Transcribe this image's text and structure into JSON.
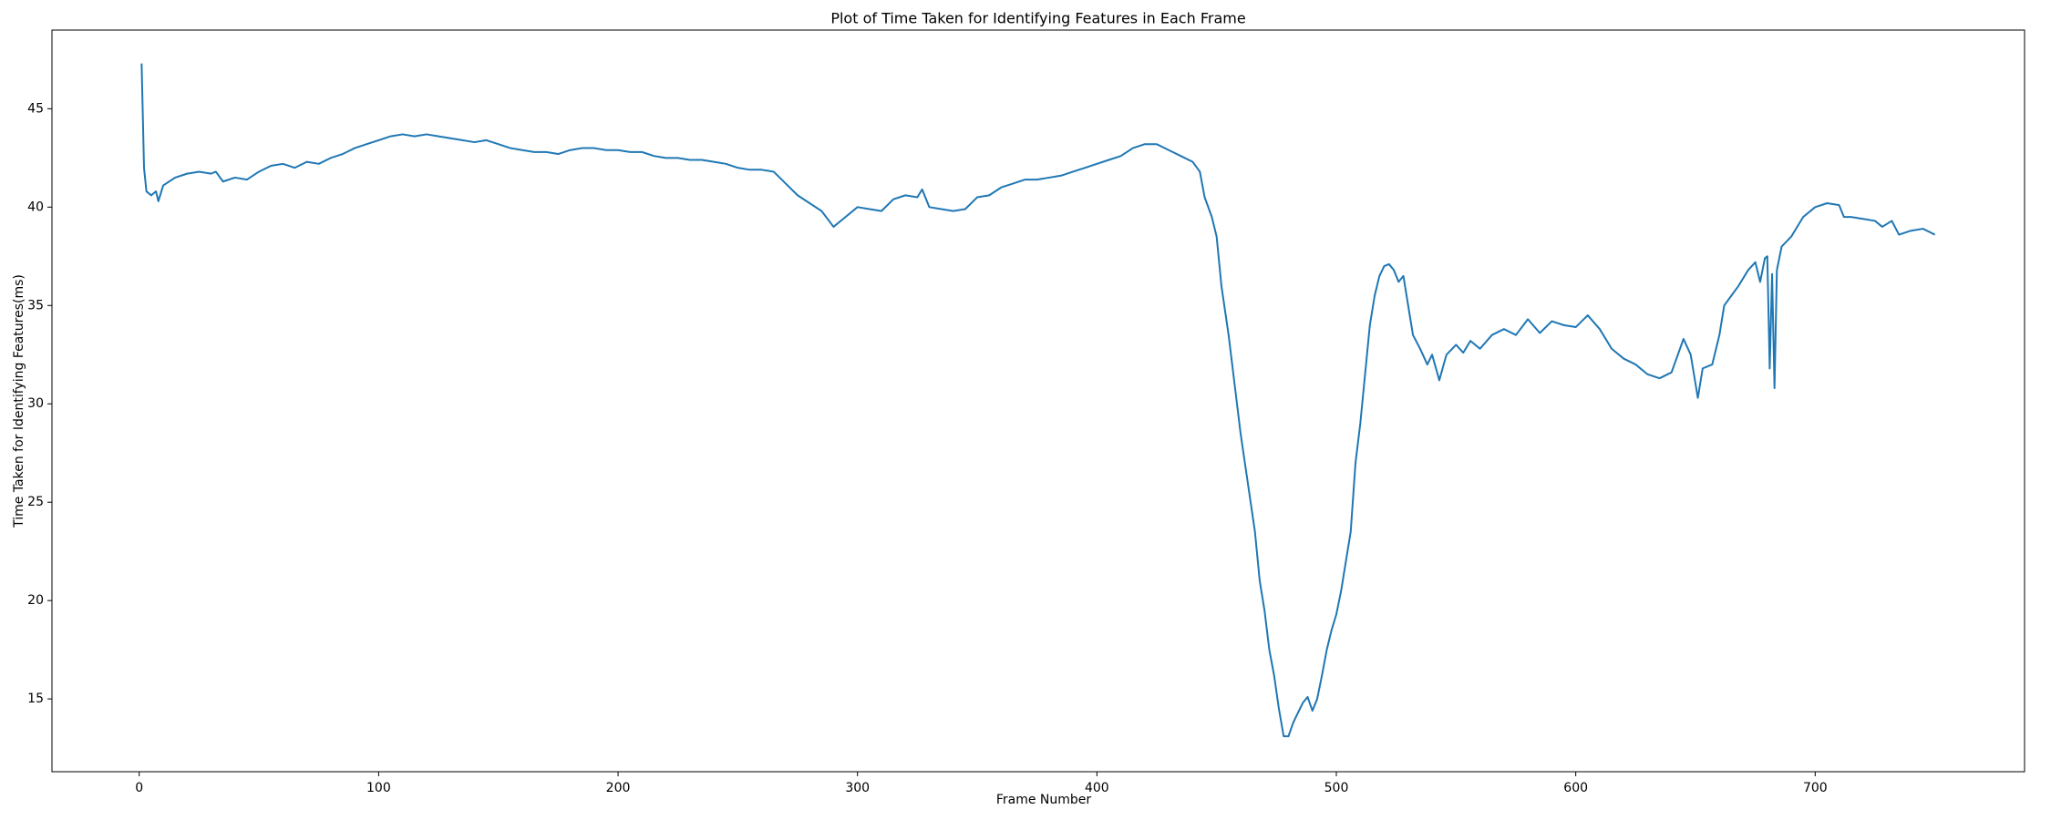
{
  "chart_data": {
    "type": "line",
    "title": "Plot of Time Taken for Identifying Features in Each Frame",
    "x_label": "Frame Number",
    "y_label": "Time Taken for Identifying Features(ms)",
    "xlim": [
      -36.45,
      787.45
    ],
    "ylim": [
      11.3,
      49.0
    ],
    "xticks": [
      0,
      100,
      200,
      300,
      400,
      500,
      600,
      700
    ],
    "yticks": [
      15,
      20,
      25,
      30,
      35,
      40,
      45
    ],
    "series": [
      {
        "color": "#1f77b4",
        "x": [
          1,
          2,
          3,
          5,
          7,
          8,
          10,
          15,
          20,
          25,
          30,
          32,
          35,
          40,
          45,
          50,
          55,
          60,
          65,
          70,
          75,
          80,
          85,
          90,
          95,
          100,
          105,
          110,
          115,
          120,
          125,
          130,
          135,
          140,
          145,
          150,
          155,
          160,
          165,
          170,
          175,
          180,
          185,
          190,
          195,
          200,
          205,
          210,
          215,
          220,
          225,
          230,
          235,
          240,
          245,
          250,
          255,
          260,
          265,
          270,
          275,
          280,
          285,
          290,
          295,
          300,
          305,
          310,
          315,
          320,
          325,
          327,
          330,
          335,
          340,
          345,
          350,
          355,
          360,
          365,
          370,
          375,
          380,
          385,
          390,
          395,
          400,
          405,
          410,
          415,
          420,
          425,
          430,
          435,
          440,
          443,
          445,
          448,
          450,
          452,
          455,
          458,
          460,
          463,
          466,
          468,
          470,
          472,
          474,
          476,
          478,
          480,
          482,
          484,
          486,
          488,
          490,
          492,
          494,
          496,
          498,
          500,
          502,
          504,
          506,
          508,
          510,
          512,
          514,
          516,
          518,
          520,
          522,
          524,
          526,
          528,
          530,
          532,
          535,
          538,
          540,
          543,
          546,
          550,
          553,
          556,
          560,
          565,
          570,
          575,
          580,
          585,
          590,
          595,
          600,
          605,
          610,
          615,
          620,
          625,
          630,
          635,
          640,
          645,
          648,
          651,
          653,
          657,
          660,
          662,
          665,
          668,
          672,
          675,
          677,
          679,
          680,
          681,
          682,
          683,
          684,
          686,
          690,
          695,
          700,
          705,
          710,
          712,
          715,
          720,
          725,
          728,
          732,
          735,
          740,
          745,
          750
        ],
        "values": [
          47.3,
          42.0,
          40.8,
          40.6,
          40.8,
          40.3,
          41.1,
          41.5,
          41.7,
          41.8,
          41.7,
          41.8,
          41.3,
          41.5,
          41.4,
          41.8,
          42.1,
          42.2,
          42.0,
          42.3,
          42.2,
          42.5,
          42.7,
          43.0,
          43.2,
          43.4,
          43.6,
          43.7,
          43.6,
          43.7,
          43.6,
          43.5,
          43.4,
          43.3,
          43.4,
          43.2,
          43.0,
          42.9,
          42.8,
          42.8,
          42.7,
          42.9,
          43.0,
          43.0,
          42.9,
          42.9,
          42.8,
          42.8,
          42.6,
          42.5,
          42.5,
          42.4,
          42.4,
          42.3,
          42.2,
          42.0,
          41.9,
          41.9,
          41.8,
          41.2,
          40.6,
          40.2,
          39.8,
          39.0,
          39.5,
          40.0,
          39.9,
          39.8,
          40.4,
          40.6,
          40.5,
          40.9,
          40.0,
          39.9,
          39.8,
          39.9,
          40.5,
          40.6,
          41.0,
          41.2,
          41.4,
          41.4,
          41.5,
          41.6,
          41.8,
          42.0,
          42.2,
          42.4,
          42.6,
          43.0,
          43.2,
          43.2,
          42.9,
          42.6,
          42.3,
          41.8,
          40.5,
          39.5,
          38.5,
          36.0,
          33.5,
          30.5,
          28.5,
          26.0,
          23.5,
          21.0,
          19.5,
          17.5,
          16.2,
          14.5,
          13.1,
          13.1,
          13.8,
          14.3,
          14.8,
          15.1,
          14.4,
          15.0,
          16.2,
          17.5,
          18.5,
          19.3,
          20.5,
          22.0,
          23.5,
          27.0,
          29.0,
          31.5,
          34.0,
          35.5,
          36.5,
          37.0,
          37.1,
          36.8,
          36.2,
          36.5,
          35.0,
          33.5,
          32.8,
          32.0,
          32.5,
          31.2,
          32.5,
          33.0,
          32.6,
          33.2,
          32.8,
          33.5,
          33.8,
          33.5,
          34.3,
          33.6,
          34.2,
          34.0,
          33.9,
          34.5,
          33.8,
          32.8,
          32.3,
          32.0,
          31.5,
          31.3,
          31.6,
          33.3,
          32.5,
          30.3,
          31.8,
          32.0,
          33.5,
          35.0,
          35.5,
          36.0,
          36.8,
          37.2,
          36.2,
          37.4,
          37.5,
          31.8,
          36.6,
          30.8,
          36.8,
          38.0,
          38.5,
          39.5,
          40.0,
          40.2,
          40.1,
          39.5,
          39.5,
          39.4,
          39.3,
          39.0,
          39.3,
          38.6,
          38.8,
          38.9,
          38.6
        ]
      }
    ]
  }
}
